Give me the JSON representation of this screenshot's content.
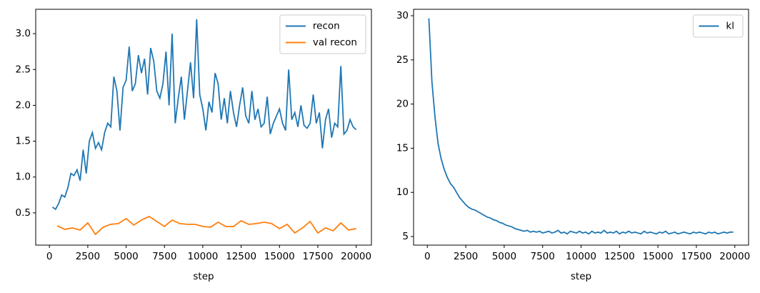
{
  "chart_data": [
    {
      "type": "line",
      "xlabel": "step",
      "legend": "upper right",
      "grid": false,
      "xlim": [
        -895,
        20995
      ],
      "ylim": [
        0.05,
        3.34
      ],
      "xticks": [
        0,
        2500,
        5000,
        7500,
        10000,
        12500,
        15000,
        17500,
        20000
      ],
      "yticks": [
        {
          "value": 0.5,
          "label": "0.5"
        },
        {
          "value": 1,
          "label": "1.0"
        },
        {
          "value": 1.5,
          "label": "1.5"
        },
        {
          "value": 2,
          "label": "2.0"
        },
        {
          "value": 2.5,
          "label": "2.5"
        },
        {
          "value": 3,
          "label": "3.0"
        }
      ],
      "series": [
        {
          "name": "recon",
          "color": "#1f77b4",
          "x": [
            200,
            400,
            600,
            800,
            1000,
            1200,
            1400,
            1600,
            1800,
            2000,
            2200,
            2400,
            2600,
            2800,
            3000,
            3200,
            3400,
            3600,
            3800,
            4000,
            4200,
            4400,
            4600,
            4800,
            5000,
            5200,
            5400,
            5600,
            5800,
            6000,
            6200,
            6400,
            6600,
            6800,
            7000,
            7200,
            7400,
            7600,
            7800,
            8000,
            8200,
            8400,
            8600,
            8800,
            9000,
            9200,
            9400,
            9600,
            9800,
            10000,
            10200,
            10400,
            10600,
            10800,
            11000,
            11200,
            11400,
            11600,
            11800,
            12000,
            12200,
            12400,
            12600,
            12800,
            13000,
            13200,
            13400,
            13600,
            13800,
            14000,
            14200,
            14400,
            14600,
            14800,
            15000,
            15200,
            15400,
            15600,
            15800,
            16000,
            16200,
            16400,
            16600,
            16800,
            17000,
            17200,
            17400,
            17600,
            17800,
            18000,
            18200,
            18400,
            18600,
            18800,
            19000,
            19200,
            19400,
            19600,
            19800,
            20000
          ],
          "values": [
            0.58,
            0.55,
            0.63,
            0.75,
            0.72,
            0.85,
            1.05,
            1.02,
            1.1,
            0.95,
            1.38,
            1.05,
            1.5,
            1.62,
            1.4,
            1.48,
            1.38,
            1.62,
            1.75,
            1.7,
            2.4,
            2.2,
            1.65,
            2.25,
            2.35,
            2.82,
            2.2,
            2.3,
            2.7,
            2.45,
            2.65,
            2.15,
            2.8,
            2.62,
            2.2,
            2.1,
            2.3,
            2.75,
            2.0,
            3.0,
            1.75,
            2.1,
            2.4,
            1.8,
            2.2,
            2.6,
            2.1,
            3.2,
            2.15,
            1.95,
            1.65,
            2.05,
            1.9,
            2.45,
            2.3,
            1.8,
            2.1,
            1.75,
            2.2,
            1.9,
            1.7,
            2.0,
            2.25,
            1.85,
            1.75,
            2.2,
            1.8,
            1.95,
            1.7,
            1.75,
            2.12,
            1.6,
            1.75,
            1.85,
            1.95,
            1.75,
            1.65,
            2.5,
            1.8,
            1.9,
            1.7,
            2.0,
            1.72,
            1.68,
            1.75,
            2.15,
            1.75,
            1.9,
            1.4,
            1.8,
            1.95,
            1.55,
            1.75,
            1.7,
            2.55,
            1.6,
            1.65,
            1.8,
            1.7,
            1.66
          ]
        },
        {
          "name": "val recon",
          "color": "#ff7f0e",
          "x": [
            500,
            1000,
            1500,
            2000,
            2500,
            3000,
            3500,
            4000,
            4500,
            5000,
            5500,
            6000,
            6500,
            7000,
            7500,
            8000,
            8500,
            9000,
            9500,
            10000,
            10500,
            11000,
            11500,
            12000,
            12500,
            13000,
            13500,
            14000,
            14500,
            15000,
            15500,
            16000,
            16500,
            17000,
            17500,
            18000,
            18500,
            19000,
            19500,
            20000
          ],
          "values": [
            0.32,
            0.27,
            0.29,
            0.26,
            0.36,
            0.2,
            0.3,
            0.34,
            0.35,
            0.42,
            0.33,
            0.4,
            0.45,
            0.38,
            0.31,
            0.4,
            0.35,
            0.34,
            0.34,
            0.31,
            0.3,
            0.37,
            0.31,
            0.31,
            0.39,
            0.34,
            0.35,
            0.37,
            0.35,
            0.28,
            0.34,
            0.22,
            0.29,
            0.38,
            0.22,
            0.29,
            0.25,
            0.36,
            0.26,
            0.28
          ]
        }
      ]
    },
    {
      "type": "line",
      "xlabel": "step",
      "legend": "upper right",
      "grid": false,
      "xlim": [
        -895,
        20895
      ],
      "ylim": [
        4.03,
        30.73
      ],
      "xticks": [
        0,
        2500,
        5000,
        7500,
        10000,
        12500,
        15000,
        17500,
        20000
      ],
      "yticks": [
        5,
        10,
        15,
        20,
        25,
        30
      ],
      "series": [
        {
          "name": "kl",
          "color": "#1f77b4",
          "x": [
            100,
            300,
            500,
            700,
            900,
            1100,
            1300,
            1500,
            1700,
            1900,
            2100,
            2300,
            2500,
            2700,
            2900,
            3100,
            3300,
            3500,
            3700,
            3900,
            4100,
            4300,
            4500,
            4700,
            4900,
            5100,
            5300,
            5500,
            5700,
            5900,
            6100,
            6300,
            6500,
            6700,
            6900,
            7100,
            7300,
            7500,
            7700,
            7900,
            8100,
            8300,
            8500,
            8700,
            8900,
            9100,
            9300,
            9500,
            9700,
            9900,
            10100,
            10300,
            10500,
            10700,
            10900,
            11100,
            11300,
            11500,
            11700,
            11900,
            12100,
            12300,
            12500,
            12700,
            12900,
            13100,
            13300,
            13500,
            13700,
            13900,
            14100,
            14300,
            14500,
            14700,
            14900,
            15100,
            15300,
            15500,
            15700,
            15900,
            16100,
            16300,
            16500,
            16700,
            16900,
            17100,
            17300,
            17500,
            17700,
            17900,
            18100,
            18300,
            18500,
            18700,
            18900,
            19100,
            19300,
            19500,
            19700,
            19900
          ],
          "values": [
            29.7,
            22.5,
            18.5,
            15.5,
            13.8,
            12.6,
            11.7,
            11.0,
            10.6,
            10.0,
            9.4,
            9.0,
            8.6,
            8.3,
            8.1,
            8.0,
            7.8,
            7.6,
            7.4,
            7.2,
            7.1,
            6.9,
            6.8,
            6.6,
            6.5,
            6.3,
            6.2,
            6.1,
            5.9,
            5.8,
            5.7,
            5.6,
            5.7,
            5.5,
            5.6,
            5.5,
            5.6,
            5.4,
            5.5,
            5.6,
            5.4,
            5.5,
            5.7,
            5.4,
            5.5,
            5.3,
            5.6,
            5.5,
            5.4,
            5.6,
            5.4,
            5.5,
            5.3,
            5.6,
            5.4,
            5.5,
            5.4,
            5.7,
            5.4,
            5.5,
            5.4,
            5.6,
            5.3,
            5.5,
            5.4,
            5.6,
            5.4,
            5.5,
            5.4,
            5.3,
            5.6,
            5.4,
            5.5,
            5.4,
            5.3,
            5.5,
            5.4,
            5.6,
            5.3,
            5.4,
            5.5,
            5.3,
            5.4,
            5.5,
            5.4,
            5.3,
            5.5,
            5.4,
            5.5,
            5.4,
            5.3,
            5.5,
            5.4,
            5.5,
            5.3,
            5.4,
            5.5,
            5.4,
            5.5,
            5.5
          ]
        }
      ]
    }
  ]
}
